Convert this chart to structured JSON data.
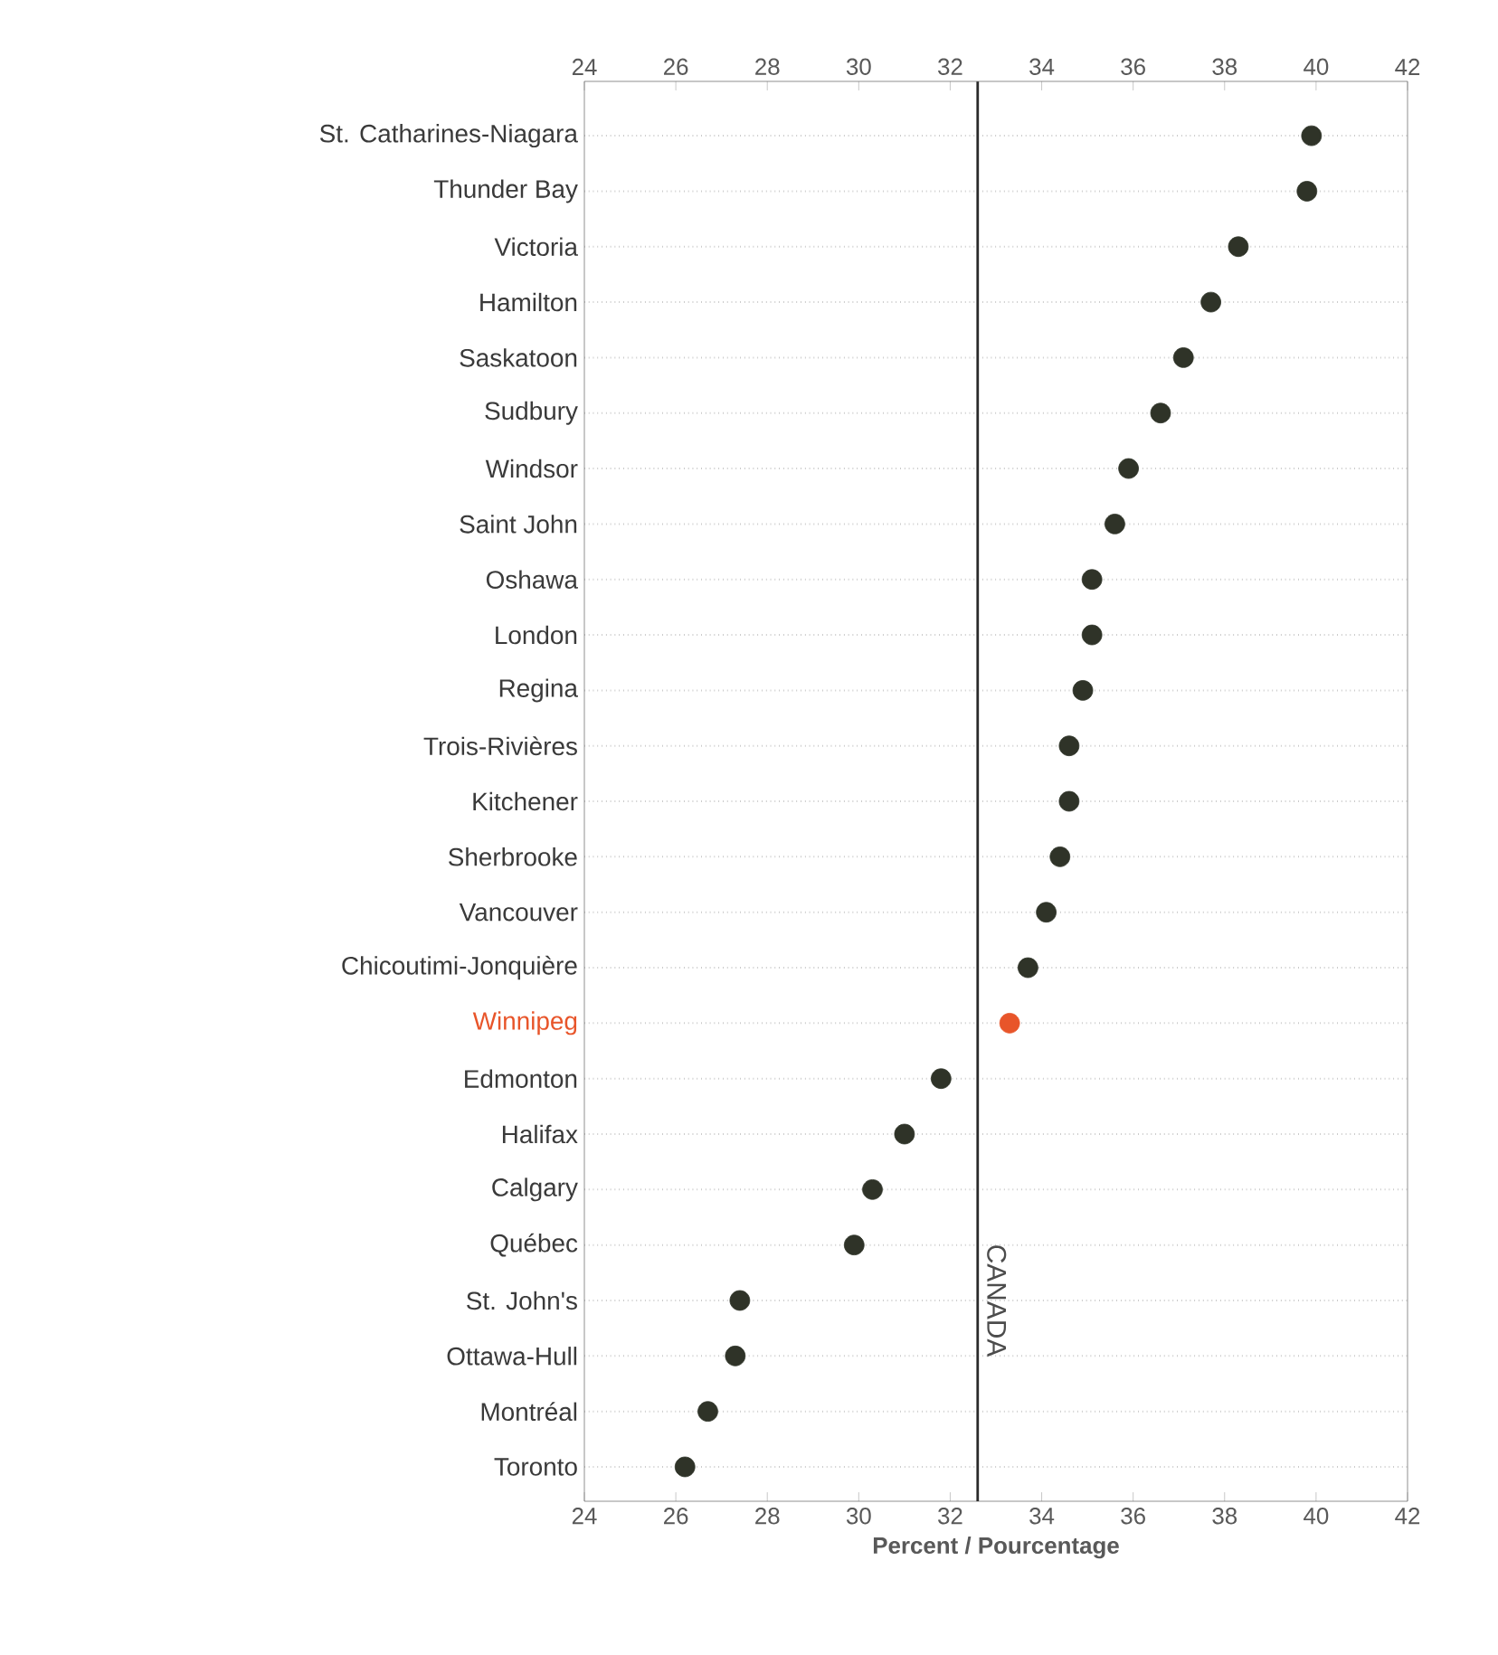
{
  "chart_data": {
    "type": "scatter",
    "orientation": "horizontal",
    "marker": "circle",
    "grid": "y",
    "categories": [
      "St. Catharines-Niagara",
      "Thunder Bay",
      "Victoria",
      "Hamilton",
      "Saskatoon",
      "Sudbury",
      "Windsor",
      "Saint John",
      "Oshawa",
      "London",
      "Regina",
      "Trois-Rivières",
      "Kitchener",
      "Sherbrooke",
      "Vancouver",
      "Chicoutimi-Jonquière",
      "Winnipeg",
      "Edmonton",
      "Halifax",
      "Calgary",
      "Québec",
      "St. John's",
      "Ottawa-Hull",
      "Montréal",
      "Toronto"
    ],
    "values": [
      39.9,
      39.8,
      38.3,
      37.7,
      37.1,
      36.6,
      35.9,
      35.6,
      35.1,
      35.1,
      34.9,
      34.6,
      34.6,
      34.4,
      34.1,
      33.7,
      33.3,
      31.8,
      31.0,
      30.3,
      29.9,
      27.4,
      27.3,
      26.7,
      26.2
    ],
    "colors": [
      "#2f3328",
      "#2f3328",
      "#2f3328",
      "#2f3328",
      "#2f3328",
      "#2f3328",
      "#2f3328",
      "#2f3328",
      "#2f3328",
      "#2f3328",
      "#2f3328",
      "#2f3328",
      "#2f3328",
      "#2f3328",
      "#2f3328",
      "#2f3328",
      "#e8552a",
      "#2f3328",
      "#2f3328",
      "#2f3328",
      "#2f3328",
      "#2f3328",
      "#2f3328",
      "#2f3328",
      "#2f3328"
    ],
    "xlabel": "Percent / Pourcentage",
    "xlim": [
      24,
      42
    ],
    "xticks": [
      24,
      26,
      28,
      30,
      32,
      34,
      36,
      38,
      40,
      42
    ],
    "x2lim": [
      24,
      42
    ],
    "x2ticks": [
      24,
      26,
      28,
      30,
      32,
      34,
      36,
      38,
      40,
      42
    ],
    "ref_lines": [
      {
        "axis": "x",
        "value": 32.6,
        "label": "CANADA",
        "color": "#2a2a2a"
      }
    ]
  }
}
